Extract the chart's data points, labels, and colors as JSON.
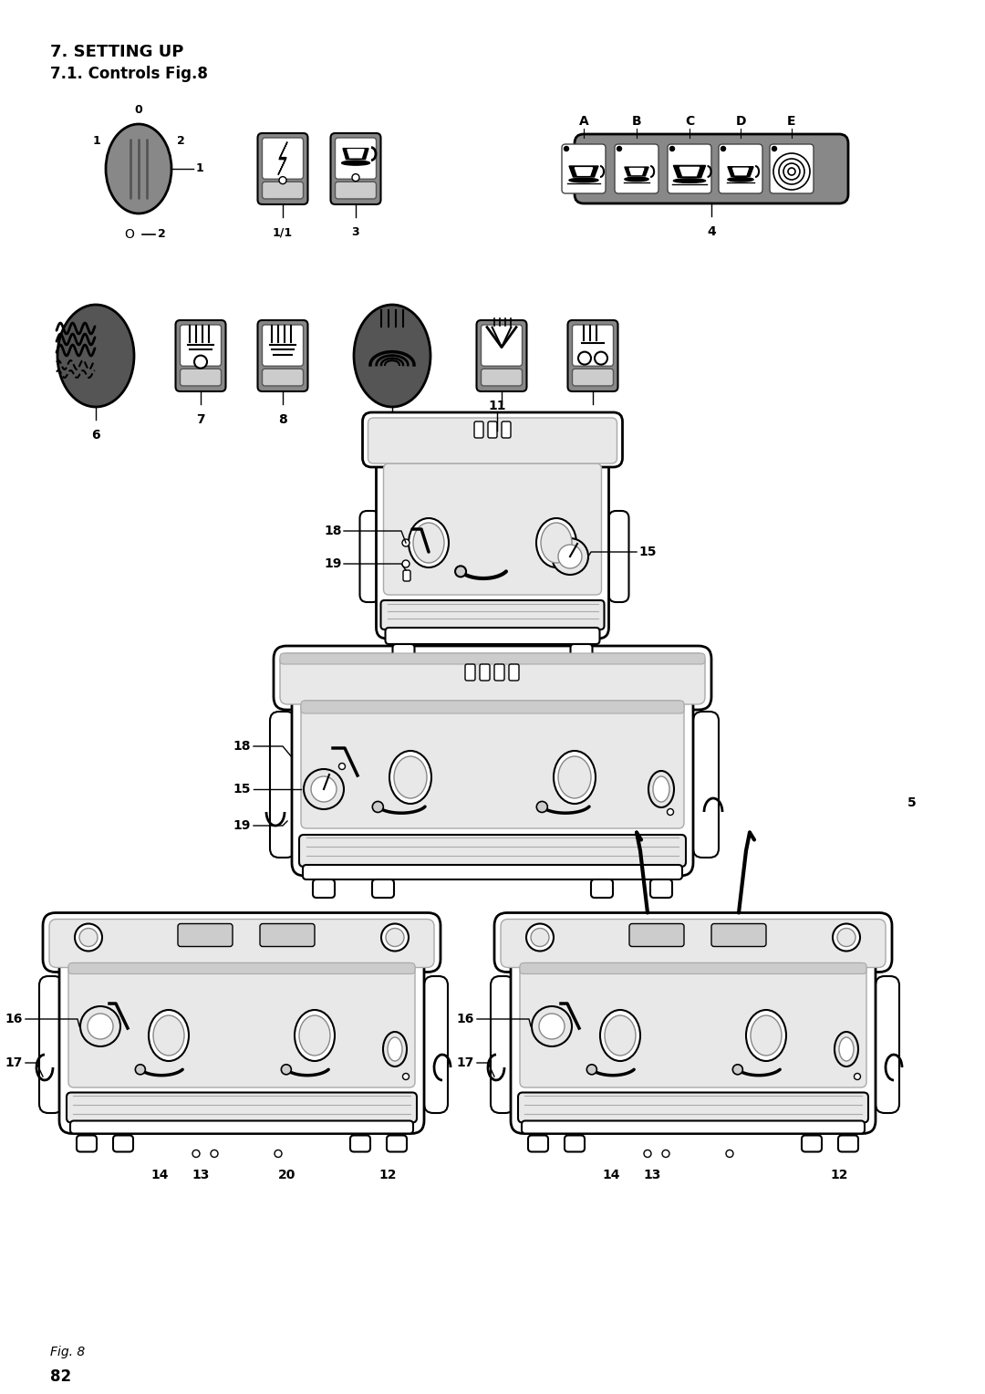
{
  "title1": "7. SETTING UP",
  "title2": "7.1. Controls Fig.8",
  "bg_color": "#ffffff",
  "text_color": "#000000",
  "dark_gray": "#555555",
  "mid_gray": "#888888",
  "light_gray": "#cccccc",
  "page_number": "82",
  "fig_label": "Fig. 8"
}
